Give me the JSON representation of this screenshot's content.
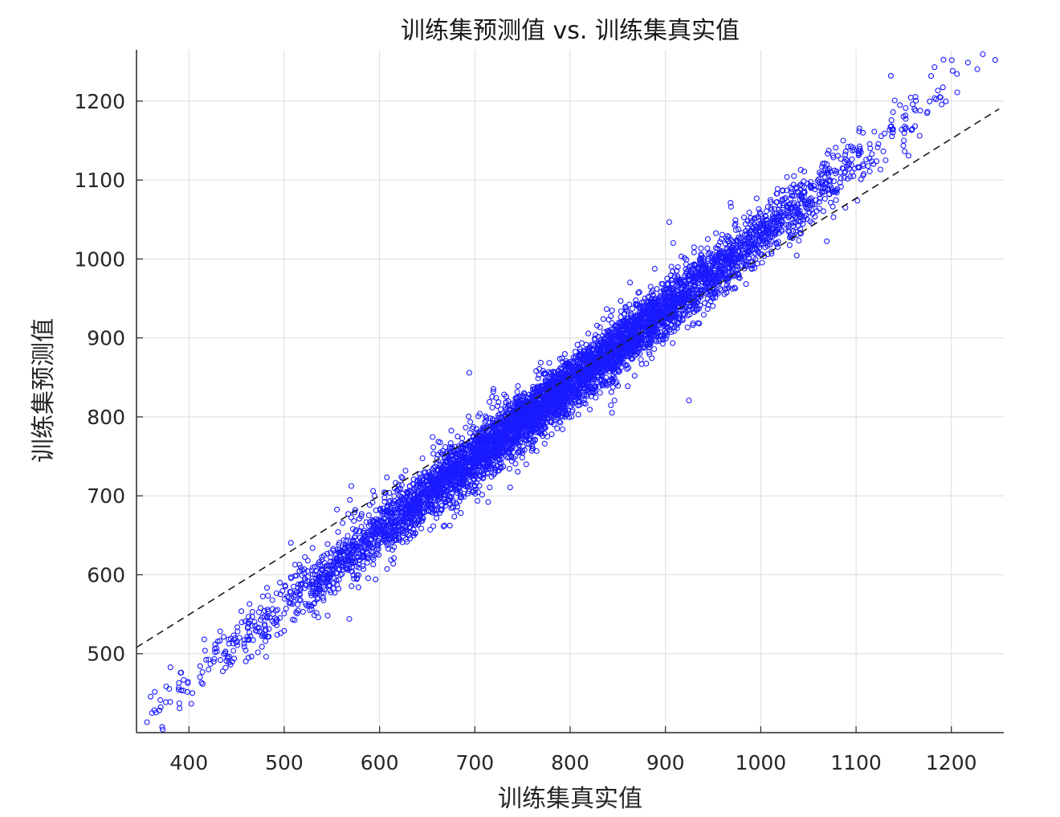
{
  "chart_data": {
    "type": "scatter",
    "title": "训练集预测值 vs. 训练集真实值",
    "xlabel": "训练集真实值",
    "ylabel": "训练集预测值",
    "xlim": [
      345,
      1255
    ],
    "ylim": [
      400,
      1265
    ],
    "xticks": [
      400,
      500,
      600,
      700,
      800,
      900,
      1000,
      1100,
      1200
    ],
    "yticks": [
      500,
      600,
      700,
      800,
      900,
      1000,
      1100,
      1200
    ],
    "grid": true,
    "marker": "open-circle",
    "colors": {
      "points": "#1a1aff",
      "reference_line": "#1a1a1a"
    },
    "series": [
      {
        "name": "",
        "trend": {
          "x": [
            345,
            1255
          ],
          "y": [
            415,
            1270
          ]
        },
        "spread_sd": 18,
        "point_count": 6000
      }
    ],
    "reference_line": {
      "style": "dashed",
      "x": [
        345,
        1250
      ],
      "y": [
        508,
        1190
      ]
    }
  }
}
